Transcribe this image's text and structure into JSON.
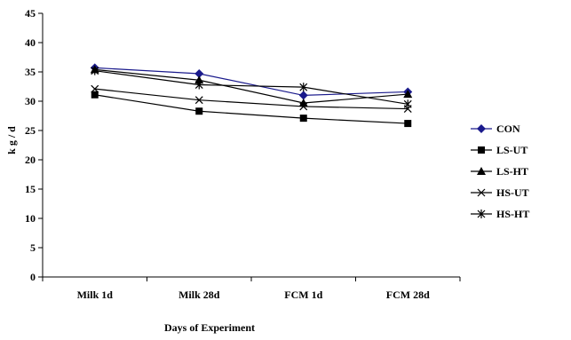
{
  "chart_data": {
    "type": "line",
    "title": "",
    "xlabel": "Days of Experiment",
    "ylabel": "k g / d",
    "categories": [
      "Milk 1d",
      "Milk 28d",
      "FCM 1d",
      "FCM 28d"
    ],
    "ylim": [
      0,
      45
    ],
    "yticks": [
      0,
      5,
      10,
      15,
      20,
      25,
      30,
      35,
      40,
      45
    ],
    "grid": false,
    "legend_position": "right",
    "series": [
      {
        "name": "CON",
        "color": "#1a1a8c",
        "marker": "diamond",
        "values": [
          35.7,
          34.7,
          31.0,
          31.6
        ]
      },
      {
        "name": "LS-UT",
        "color": "#000000",
        "marker": "square",
        "values": [
          31.1,
          28.3,
          27.1,
          26.2
        ]
      },
      {
        "name": "LS-HT",
        "color": "#000000",
        "marker": "triangle",
        "values": [
          35.4,
          33.6,
          29.7,
          31.2
        ]
      },
      {
        "name": "HS-UT",
        "color": "#000000",
        "marker": "x",
        "values": [
          32.1,
          30.2,
          29.1,
          28.7
        ]
      },
      {
        "name": "HS-HT",
        "color": "#000000",
        "marker": "star",
        "values": [
          35.2,
          32.8,
          32.4,
          29.5
        ]
      }
    ]
  }
}
